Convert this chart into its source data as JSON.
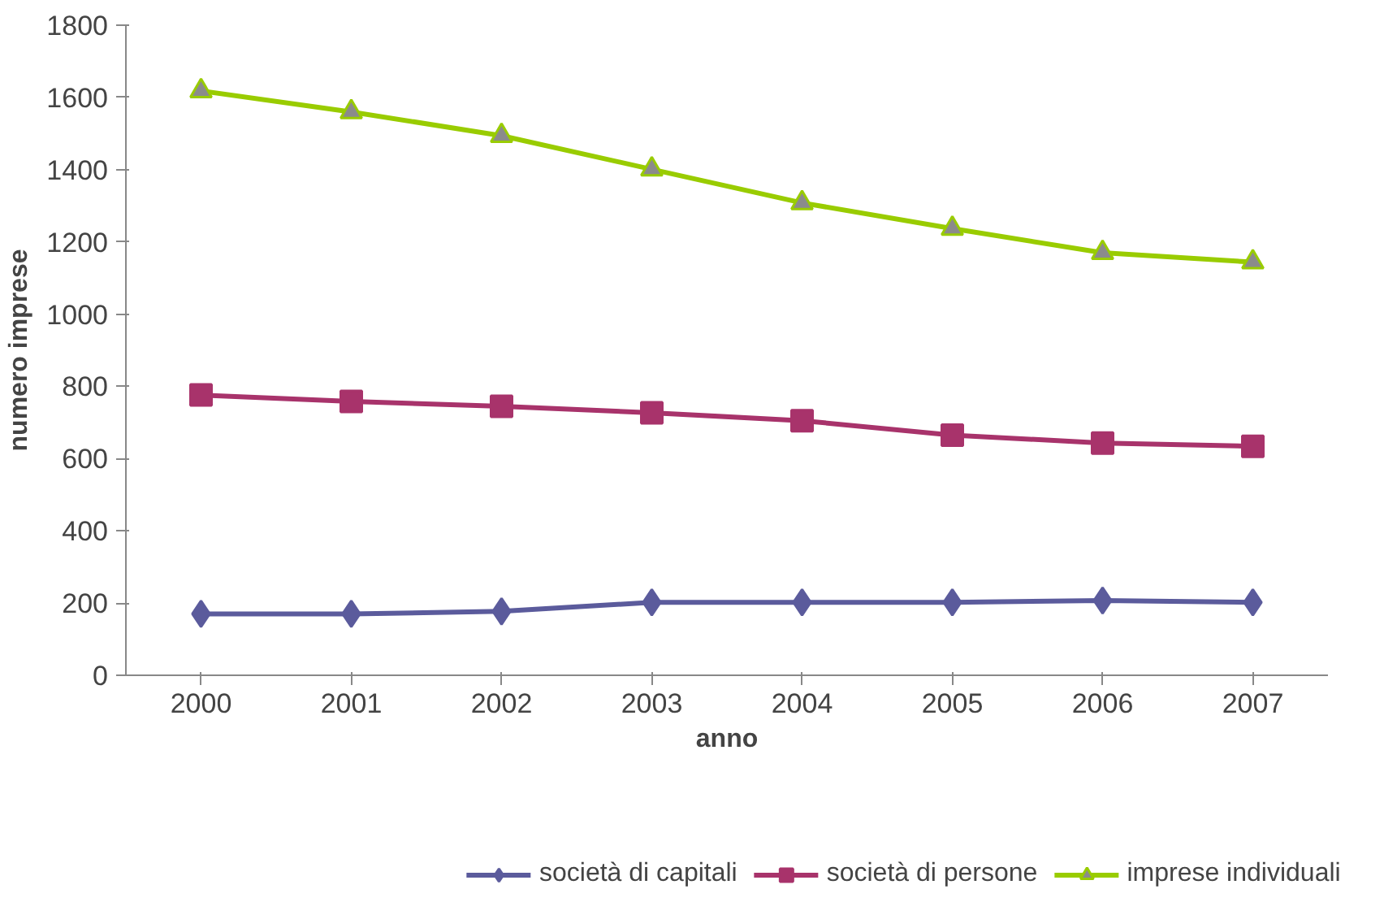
{
  "chart_data": {
    "type": "line",
    "xlabel": "anno",
    "ylabel": "numero imprese",
    "categories": [
      "2000",
      "2001",
      "2002",
      "2003",
      "2004",
      "2005",
      "2006",
      "2007"
    ],
    "series": [
      {
        "name": "società di capitali",
        "color": "#5b5b9c",
        "marker": "diamond",
        "values": [
          170,
          170,
          177,
          202,
          202,
          202,
          207,
          202
        ]
      },
      {
        "name": "società di persone",
        "color": "#a8336b",
        "marker": "square",
        "values": [
          776,
          758,
          745,
          727,
          705,
          665,
          643,
          634
        ]
      },
      {
        "name": "imprese individuali",
        "color": "#99cc00",
        "marker": "triangle",
        "values": [
          1618,
          1560,
          1494,
          1401,
          1308,
          1237,
          1170,
          1144
        ]
      }
    ],
    "ylim": [
      0,
      1800
    ],
    "yticks": [
      0,
      200,
      400,
      600,
      800,
      1000,
      1200,
      1400,
      1600,
      1800
    ],
    "grid": false,
    "legend": "bottom"
  }
}
